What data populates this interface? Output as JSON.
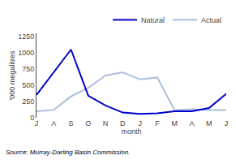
{
  "chart_data": {
    "type": "line",
    "categories": [
      "J",
      "A",
      "S",
      "O",
      "N",
      "D",
      "J",
      "F",
      "M",
      "A",
      "M",
      "J"
    ],
    "series": [
      {
        "name": "Natural",
        "color": "#0000cc",
        "values": [
          350,
          700,
          1050,
          340,
          190,
          80,
          60,
          70,
          100,
          100,
          150,
          370
        ]
      },
      {
        "name": "Actual",
        "color": "#aabfdc",
        "values": [
          100,
          120,
          330,
          460,
          650,
          700,
          590,
          620,
          120,
          130,
          120,
          120
        ]
      }
    ],
    "x_label": "month",
    "y_label": "'000 megalitres",
    "ylim": [
      0,
      1300
    ],
    "yticks": [
      0,
      250,
      500,
      750,
      1000,
      1250
    ],
    "legend": "upper right",
    "grid": false,
    "annotations": [
      "Source: Murray-Darling Basin Commission."
    ]
  }
}
